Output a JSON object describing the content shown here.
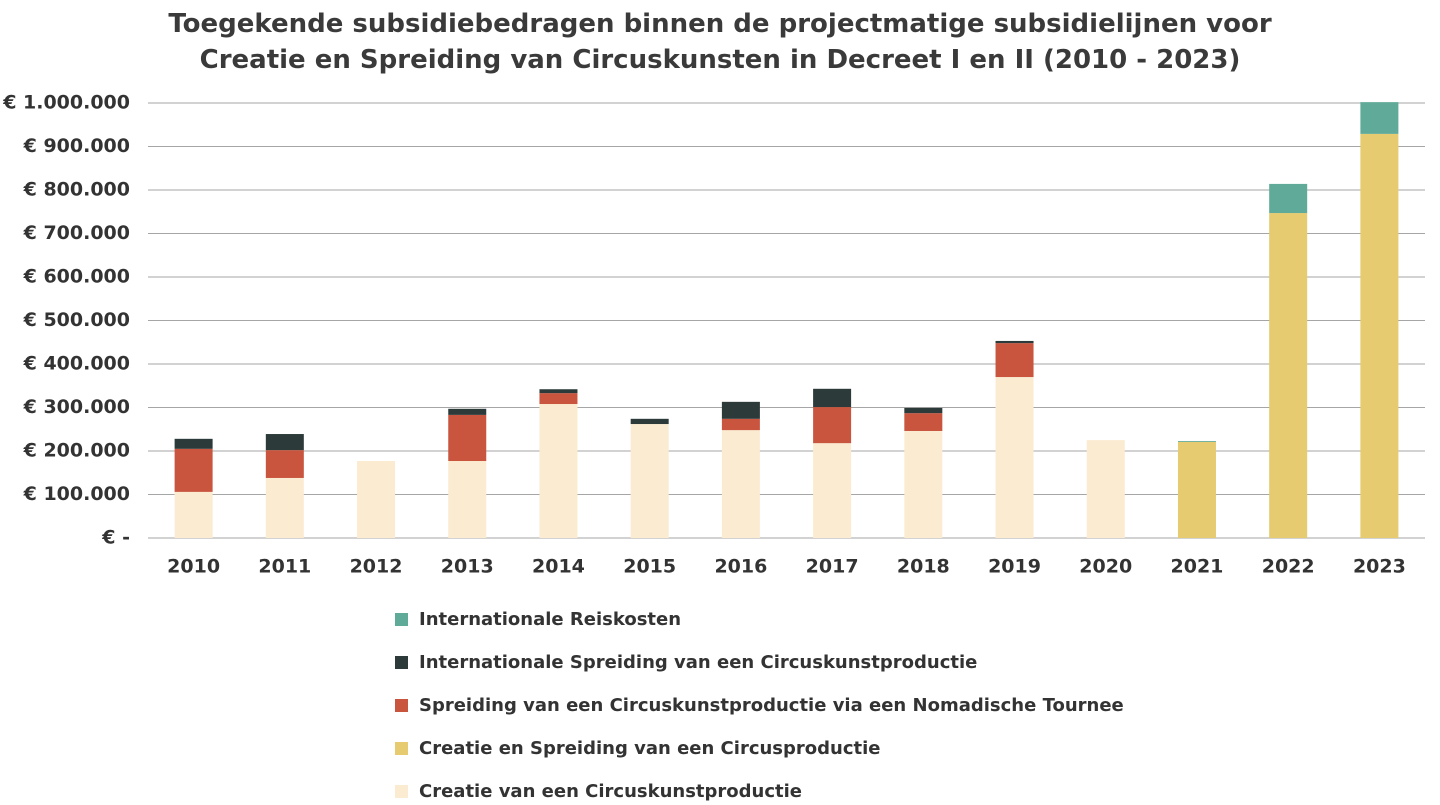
{
  "chart_data": {
    "type": "stacked-bar",
    "title": "Toegekende subsidiebedragen binnen de projectmatige subsidielijnen voor Creatie en Spreiding van Circuskunsten in Decreet I en II (2010 - 2023)",
    "categories": [
      "2010",
      "2011",
      "2012",
      "2013",
      "2014",
      "2015",
      "2016",
      "2017",
      "2018",
      "2019",
      "2020",
      "2021",
      "2022",
      "2023"
    ],
    "series": [
      {
        "name": "Creatie van een Circuskunstproductie",
        "color": "#fbebd0",
        "values": [
          106000,
          138000,
          177000,
          177000,
          308000,
          262000,
          248000,
          218000,
          246000,
          370000,
          225000,
          0,
          0,
          0
        ]
      },
      {
        "name": "Creatie en Spreiding van een Circusproductie",
        "color": "#e6cb70",
        "values": [
          0,
          0,
          0,
          0,
          0,
          0,
          0,
          0,
          0,
          0,
          0,
          221000,
          747000,
          929000
        ]
      },
      {
        "name": "Spreiding van een Circuskunstproductie via een Nomadische Tournee",
        "color": "#c9553f",
        "values": [
          99000,
          64000,
          0,
          106000,
          25000,
          0,
          26000,
          83000,
          41000,
          78000,
          0,
          0,
          0,
          0
        ]
      },
      {
        "name": "Internationale Spreiding van een Circuskunstproductie",
        "color": "#2c3a3a",
        "values": [
          23000,
          37000,
          0,
          14000,
          9000,
          12000,
          39000,
          42000,
          12000,
          5000,
          0,
          0,
          0,
          0
        ]
      },
      {
        "name": "Internationale Reiskosten",
        "color": "#5faa98",
        "values": [
          0,
          0,
          0,
          0,
          0,
          0,
          0,
          0,
          0,
          0,
          0,
          2000,
          67000,
          73000
        ]
      }
    ],
    "ylim": [
      0,
      1000000
    ],
    "yticks": [
      {
        "value": 0,
        "label": "€ -"
      },
      {
        "value": 100000,
        "label": "€ 100.000"
      },
      {
        "value": 200000,
        "label": "€ 200.000"
      },
      {
        "value": 300000,
        "label": "€ 300.000"
      },
      {
        "value": 400000,
        "label": "€ 400.000"
      },
      {
        "value": 500000,
        "label": "€ 500.000"
      },
      {
        "value": 600000,
        "label": "€ 600.000"
      },
      {
        "value": 700000,
        "label": "€ 700.000"
      },
      {
        "value": 800000,
        "label": "€ 800.000"
      },
      {
        "value": 900000,
        "label": "€ 900.000"
      },
      {
        "value": 1000000,
        "label": "€ 1.000.000"
      }
    ],
    "grid": true,
    "legend": "bottom"
  }
}
